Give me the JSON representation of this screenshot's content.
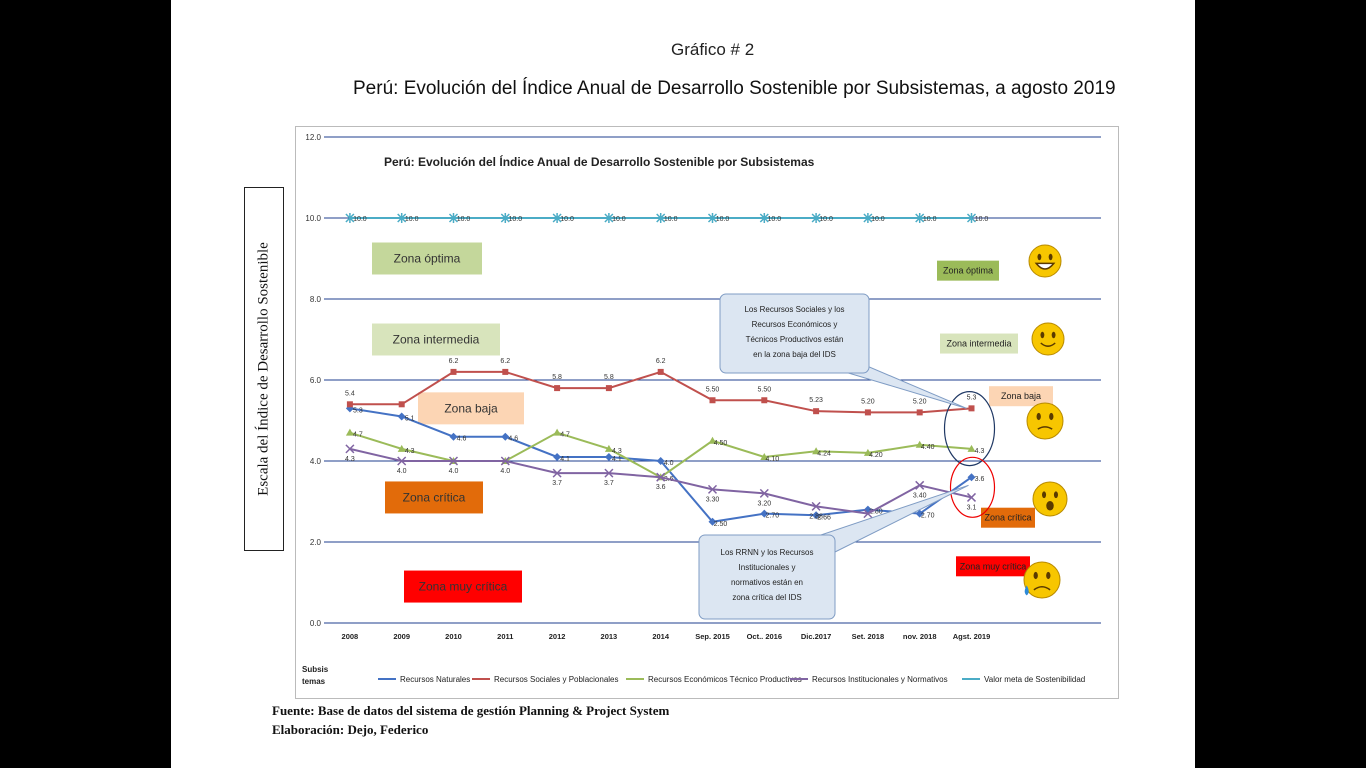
{
  "figure_label": "Gráfico # 2",
  "main_title": "Perú: Evolución del  Índice Anual de Desarrollo Sostenible por Subsistemas, a agosto 2019",
  "y_axis_label": "Escala del Índice de Desarrollo Sostenible",
  "source": "Fuente: Base de datos del sistema de gestión Planning & Project System",
  "author": "Elaboración: Dejo, Federico",
  "chart_data": {
    "type": "line",
    "title": "Perú: Evolución del  Índice Anual de Desarrollo Sostenible por Subsistemas",
    "ylim": [
      0,
      12
    ],
    "yticks": [
      "0.0",
      "2.0",
      "4.0",
      "6.0",
      "8.0",
      "10.0",
      "12.0"
    ],
    "grid": true,
    "categories": [
      "2008",
      "2009",
      "2010",
      "2011",
      "2012",
      "2013",
      "2014",
      "Sep. 2015",
      "Oct.. 2016",
      "Dic.2017",
      "Set. 2018",
      "nov. 2018",
      "Agst. 2019"
    ],
    "legend_title": "Subsis temas",
    "series": [
      {
        "name": "Recursos Naturales",
        "color": "#4472c4",
        "marker": "diamond",
        "values": [
          5.3,
          5.1,
          4.6,
          4.6,
          4.1,
          4.1,
          4.0,
          2.5,
          2.7,
          2.66,
          2.8,
          2.7,
          3.6
        ],
        "labels": [
          "5.3",
          "5.1",
          "4.6",
          "4.6",
          "4.1",
          "4.1",
          "4.0",
          "2.50",
          "2.70",
          "2.66",
          "2.80",
          "2.70",
          "3.6"
        ]
      },
      {
        "name": "Recursos Sociales y Poblacionales",
        "color": "#c0504d",
        "marker": "square",
        "values": [
          5.4,
          5.4,
          6.2,
          6.2,
          5.8,
          5.8,
          6.2,
          5.5,
          5.5,
          5.23,
          5.2,
          5.2,
          5.3
        ],
        "labels": [
          "5.4",
          "",
          "6.2",
          "6.2",
          "5.8",
          "5.8",
          "6.2",
          "5.50",
          "5.50",
          "5.23",
          "5.20",
          "5.20",
          "5.3"
        ]
      },
      {
        "name": "Recursos Económicos Técnico Productivos",
        "color": "#9bbb59",
        "marker": "triangle",
        "values": [
          4.7,
          4.3,
          4.0,
          4.0,
          4.7,
          4.3,
          3.6,
          4.5,
          4.1,
          4.24,
          4.2,
          4.4,
          4.3
        ],
        "labels": [
          "4.7",
          "4.3",
          "",
          "",
          "4.7",
          "4.3",
          "3.6",
          "4.50",
          "4.10",
          "4.24",
          "4.20",
          "4.40",
          "4.3"
        ]
      },
      {
        "name": "Recursos Institucionales y Normativos",
        "color": "#8064a2",
        "marker": "x",
        "values": [
          4.3,
          4.0,
          4.0,
          4.0,
          3.7,
          3.7,
          3.6,
          3.3,
          3.2,
          2.88,
          2.7,
          3.4,
          3.1
        ],
        "labels": [
          "4.3",
          "4.0",
          "4.0",
          "4.0",
          "3.7",
          "3.7",
          "3.6",
          "3.30",
          "3.20",
          "2.88",
          "2.70",
          "3.40",
          "3.1"
        ]
      },
      {
        "name": "Valor meta de Sostenibilidad",
        "color": "#4bacc6",
        "marker": "star",
        "values": [
          10,
          10,
          10,
          10,
          10,
          10,
          10,
          10,
          10,
          10,
          10,
          10,
          10
        ],
        "labels": [
          "10.0",
          "10.0",
          "10.0",
          "10.0",
          "10.0",
          "10.0",
          "10.0",
          "10.0",
          "10.0",
          "10.0",
          "10.0",
          "10.0",
          "10.0"
        ]
      }
    ],
    "zones": [
      {
        "label": "Zona óptima",
        "value": 9.0,
        "color": "#c4d79b"
      },
      {
        "label": "Zona intermedia",
        "value": 7.0,
        "color": "#d8e4bc"
      },
      {
        "label": "Zona baja",
        "value": 5.3,
        "color": "#fcd5b4"
      },
      {
        "label": "Zona crítica",
        "value": 3.1,
        "color": "#e26b0a"
      },
      {
        "label": "Zona muy crítica",
        "value": 0.9,
        "color": "#ff0000"
      }
    ],
    "right_zones": [
      {
        "label": "Zona óptima",
        "value": 8.7,
        "color": "#9bbb59"
      },
      {
        "label": "Zona intermedia",
        "value": 6.9,
        "color": "#d8e4bc"
      },
      {
        "label": "Zona baja",
        "value": 5.6,
        "color": "#fcd5b4"
      },
      {
        "label": "Zona crítica",
        "value": 2.6,
        "color": "#e26b0a"
      },
      {
        "label": "Zona muy crítica",
        "value": 1.4,
        "color": "#ff0000"
      }
    ],
    "callouts": [
      {
        "lines": [
          "Los Recursos Sociales y los",
          "Recursos Económicos y",
          "Técnicos Productivos están",
          "en la zona baja del IDS"
        ]
      },
      {
        "lines": [
          "Los RRNN y los Recursos",
          "Institucionales y",
          "normativos están en",
          "zona crítica del IDS"
        ]
      }
    ],
    "emoji_icons": [
      "grinning-face-icon",
      "smiling-face-icon",
      "worried-face-icon",
      "shocked-face-icon",
      "sad-sweat-face-icon"
    ]
  }
}
